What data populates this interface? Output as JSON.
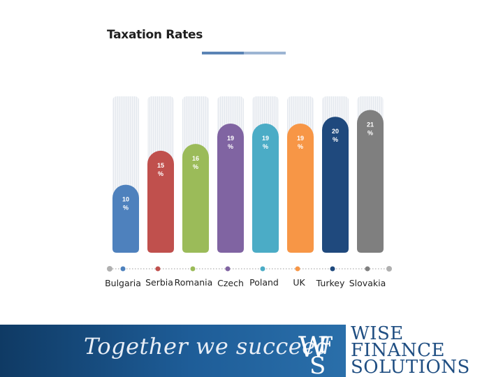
{
  "chart_data": {
    "type": "bar",
    "title": "Taxation Rates",
    "categories": [
      "Bulgaria",
      "Serbia",
      "Romania",
      "Czech",
      "Poland",
      "UK",
      "Turkey",
      "Slovakia"
    ],
    "values": [
      10,
      15,
      16,
      19,
      19,
      19,
      20,
      21
    ],
    "value_labels": [
      "10 %",
      "15 %",
      "16 %",
      "19 %",
      "19 %",
      "19 %",
      "20 %",
      "21 %"
    ],
    "ylim": [
      0,
      23
    ],
    "colors": [
      "#4e81bd",
      "#c0504d",
      "#9bbb59",
      "#8064a2",
      "#4bacc6",
      "#f79646",
      "#1f497d",
      "#7f7f7f"
    ],
    "grid": false
  },
  "footer": {
    "tagline": "Together we succeed",
    "brand_line1": "WISE",
    "brand_line2": "FINANCE",
    "brand_line3": "SOLUTIONS",
    "logo_letters": "WFS"
  }
}
